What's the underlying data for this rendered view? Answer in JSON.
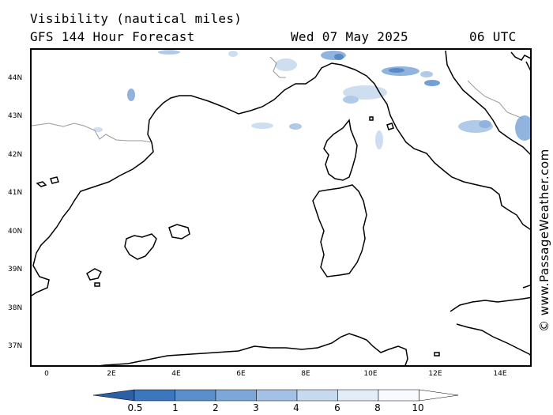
{
  "header": {
    "title": "Visibility (nautical miles)",
    "model": "GFS 144 Hour Forecast",
    "date": "Wed 07 May 2025",
    "time": "06 UTC"
  },
  "map": {
    "lat_labels": [
      "44N",
      "43N",
      "42N",
      "41N",
      "40N",
      "39N",
      "38N",
      "37N"
    ],
    "lon_labels": [
      "0",
      "2E",
      "4E",
      "6E",
      "8E",
      "10E",
      "12E",
      "14E"
    ],
    "coast_color": "#000000",
    "border_color": "#999999"
  },
  "credit": "© www.PassageWeather.com",
  "legend": {
    "labels": [
      "0.5",
      "1",
      "2",
      "3",
      "4",
      "6",
      "8",
      "10"
    ],
    "colors": [
      "#2c5fa3",
      "#3c76bd",
      "#5b8fcb",
      "#7da7d8",
      "#a3c1e4",
      "#c6d9ef",
      "#e3edf8",
      "#f7fbff"
    ]
  }
}
